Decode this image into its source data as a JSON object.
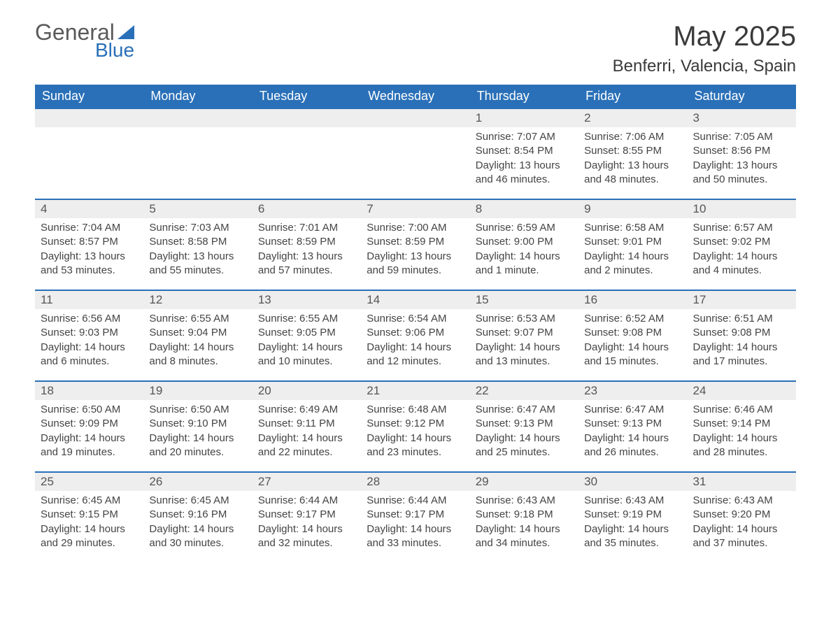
{
  "logo": {
    "word1": "General",
    "word2": "Blue"
  },
  "title": "May 2025",
  "location": "Benferri, Valencia, Spain",
  "colors": {
    "brand_blue": "#2a70b8",
    "header_text": "#ffffff",
    "daybar_bg": "#eeeeee",
    "body_text": "#444444",
    "title_text": "#3a3a3a",
    "logo_gray": "#5a5a5a"
  },
  "weekdays": [
    "Sunday",
    "Monday",
    "Tuesday",
    "Wednesday",
    "Thursday",
    "Friday",
    "Saturday"
  ],
  "weeks": [
    [
      null,
      null,
      null,
      null,
      {
        "n": "1",
        "sr": "Sunrise: 7:07 AM",
        "ss": "Sunset: 8:54 PM",
        "dl1": "Daylight: 13 hours",
        "dl2": "and 46 minutes."
      },
      {
        "n": "2",
        "sr": "Sunrise: 7:06 AM",
        "ss": "Sunset: 8:55 PM",
        "dl1": "Daylight: 13 hours",
        "dl2": "and 48 minutes."
      },
      {
        "n": "3",
        "sr": "Sunrise: 7:05 AM",
        "ss": "Sunset: 8:56 PM",
        "dl1": "Daylight: 13 hours",
        "dl2": "and 50 minutes."
      }
    ],
    [
      {
        "n": "4",
        "sr": "Sunrise: 7:04 AM",
        "ss": "Sunset: 8:57 PM",
        "dl1": "Daylight: 13 hours",
        "dl2": "and 53 minutes."
      },
      {
        "n": "5",
        "sr": "Sunrise: 7:03 AM",
        "ss": "Sunset: 8:58 PM",
        "dl1": "Daylight: 13 hours",
        "dl2": "and 55 minutes."
      },
      {
        "n": "6",
        "sr": "Sunrise: 7:01 AM",
        "ss": "Sunset: 8:59 PM",
        "dl1": "Daylight: 13 hours",
        "dl2": "and 57 minutes."
      },
      {
        "n": "7",
        "sr": "Sunrise: 7:00 AM",
        "ss": "Sunset: 8:59 PM",
        "dl1": "Daylight: 13 hours",
        "dl2": "and 59 minutes."
      },
      {
        "n": "8",
        "sr": "Sunrise: 6:59 AM",
        "ss": "Sunset: 9:00 PM",
        "dl1": "Daylight: 14 hours",
        "dl2": "and 1 minute."
      },
      {
        "n": "9",
        "sr": "Sunrise: 6:58 AM",
        "ss": "Sunset: 9:01 PM",
        "dl1": "Daylight: 14 hours",
        "dl2": "and 2 minutes."
      },
      {
        "n": "10",
        "sr": "Sunrise: 6:57 AM",
        "ss": "Sunset: 9:02 PM",
        "dl1": "Daylight: 14 hours",
        "dl2": "and 4 minutes."
      }
    ],
    [
      {
        "n": "11",
        "sr": "Sunrise: 6:56 AM",
        "ss": "Sunset: 9:03 PM",
        "dl1": "Daylight: 14 hours",
        "dl2": "and 6 minutes."
      },
      {
        "n": "12",
        "sr": "Sunrise: 6:55 AM",
        "ss": "Sunset: 9:04 PM",
        "dl1": "Daylight: 14 hours",
        "dl2": "and 8 minutes."
      },
      {
        "n": "13",
        "sr": "Sunrise: 6:55 AM",
        "ss": "Sunset: 9:05 PM",
        "dl1": "Daylight: 14 hours",
        "dl2": "and 10 minutes."
      },
      {
        "n": "14",
        "sr": "Sunrise: 6:54 AM",
        "ss": "Sunset: 9:06 PM",
        "dl1": "Daylight: 14 hours",
        "dl2": "and 12 minutes."
      },
      {
        "n": "15",
        "sr": "Sunrise: 6:53 AM",
        "ss": "Sunset: 9:07 PM",
        "dl1": "Daylight: 14 hours",
        "dl2": "and 13 minutes."
      },
      {
        "n": "16",
        "sr": "Sunrise: 6:52 AM",
        "ss": "Sunset: 9:08 PM",
        "dl1": "Daylight: 14 hours",
        "dl2": "and 15 minutes."
      },
      {
        "n": "17",
        "sr": "Sunrise: 6:51 AM",
        "ss": "Sunset: 9:08 PM",
        "dl1": "Daylight: 14 hours",
        "dl2": "and 17 minutes."
      }
    ],
    [
      {
        "n": "18",
        "sr": "Sunrise: 6:50 AM",
        "ss": "Sunset: 9:09 PM",
        "dl1": "Daylight: 14 hours",
        "dl2": "and 19 minutes."
      },
      {
        "n": "19",
        "sr": "Sunrise: 6:50 AM",
        "ss": "Sunset: 9:10 PM",
        "dl1": "Daylight: 14 hours",
        "dl2": "and 20 minutes."
      },
      {
        "n": "20",
        "sr": "Sunrise: 6:49 AM",
        "ss": "Sunset: 9:11 PM",
        "dl1": "Daylight: 14 hours",
        "dl2": "and 22 minutes."
      },
      {
        "n": "21",
        "sr": "Sunrise: 6:48 AM",
        "ss": "Sunset: 9:12 PM",
        "dl1": "Daylight: 14 hours",
        "dl2": "and 23 minutes."
      },
      {
        "n": "22",
        "sr": "Sunrise: 6:47 AM",
        "ss": "Sunset: 9:13 PM",
        "dl1": "Daylight: 14 hours",
        "dl2": "and 25 minutes."
      },
      {
        "n": "23",
        "sr": "Sunrise: 6:47 AM",
        "ss": "Sunset: 9:13 PM",
        "dl1": "Daylight: 14 hours",
        "dl2": "and 26 minutes."
      },
      {
        "n": "24",
        "sr": "Sunrise: 6:46 AM",
        "ss": "Sunset: 9:14 PM",
        "dl1": "Daylight: 14 hours",
        "dl2": "and 28 minutes."
      }
    ],
    [
      {
        "n": "25",
        "sr": "Sunrise: 6:45 AM",
        "ss": "Sunset: 9:15 PM",
        "dl1": "Daylight: 14 hours",
        "dl2": "and 29 minutes."
      },
      {
        "n": "26",
        "sr": "Sunrise: 6:45 AM",
        "ss": "Sunset: 9:16 PM",
        "dl1": "Daylight: 14 hours",
        "dl2": "and 30 minutes."
      },
      {
        "n": "27",
        "sr": "Sunrise: 6:44 AM",
        "ss": "Sunset: 9:17 PM",
        "dl1": "Daylight: 14 hours",
        "dl2": "and 32 minutes."
      },
      {
        "n": "28",
        "sr": "Sunrise: 6:44 AM",
        "ss": "Sunset: 9:17 PM",
        "dl1": "Daylight: 14 hours",
        "dl2": "and 33 minutes."
      },
      {
        "n": "29",
        "sr": "Sunrise: 6:43 AM",
        "ss": "Sunset: 9:18 PM",
        "dl1": "Daylight: 14 hours",
        "dl2": "and 34 minutes."
      },
      {
        "n": "30",
        "sr": "Sunrise: 6:43 AM",
        "ss": "Sunset: 9:19 PM",
        "dl1": "Daylight: 14 hours",
        "dl2": "and 35 minutes."
      },
      {
        "n": "31",
        "sr": "Sunrise: 6:43 AM",
        "ss": "Sunset: 9:20 PM",
        "dl1": "Daylight: 14 hours",
        "dl2": "and 37 minutes."
      }
    ]
  ]
}
